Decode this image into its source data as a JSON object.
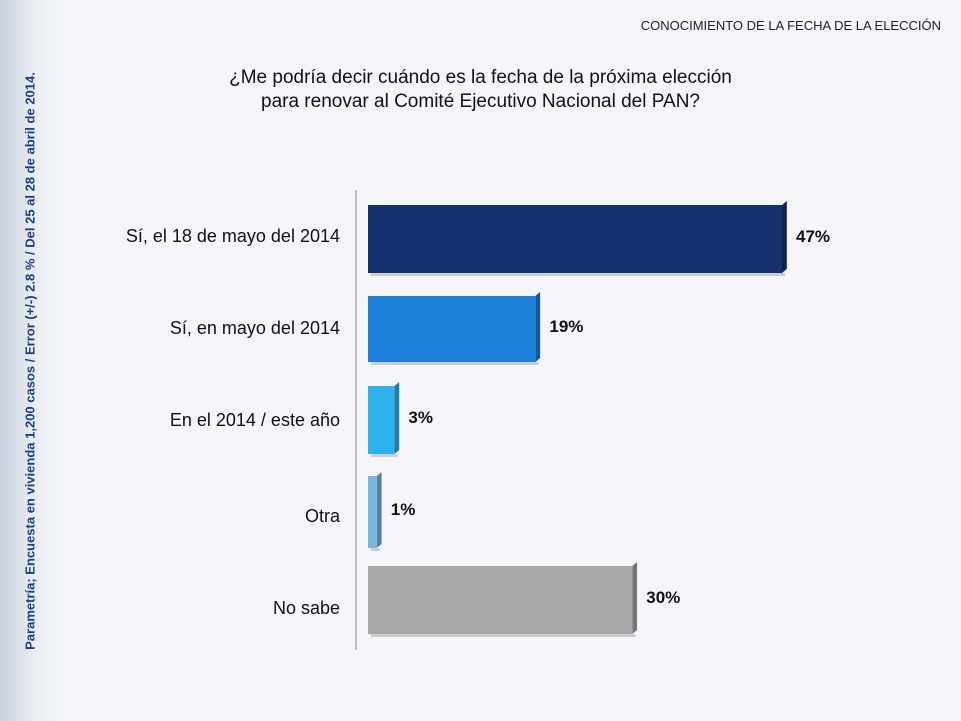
{
  "header": {
    "title": "CONOCIMIENTO DE LA FECHA DE LA ELECCIÓN"
  },
  "question": {
    "line1": "¿Me podría decir cuándo es la fecha de la próxima elección",
    "line2": "para renovar al Comité Ejecutivo Nacional del PAN?"
  },
  "side_note": "Parametría; Encuesta en vivienda 1,200 casos / Error (+/-) 2.8 % / Del 25 al 28 de abril de 2014.",
  "chart_data": {
    "type": "bar",
    "orientation": "horizontal",
    "categories": [
      "Sí, el 18 de mayo del 2014",
      "Sí, en mayo del 2014",
      "En el 2014 / este año",
      "Otra",
      "No sabe"
    ],
    "values": [
      47,
      19,
      3,
      1,
      30
    ],
    "value_labels": [
      "47%",
      "19%",
      "3%",
      "1%",
      "30%"
    ],
    "colors": [
      "#17306e",
      "#1d7fd8",
      "#2fb2ec",
      "#7ab7de",
      "#a8a8a8"
    ],
    "xlim": [
      0,
      50
    ],
    "title": "",
    "xlabel": "",
    "ylabel": "",
    "grid": false,
    "legend": "none"
  }
}
